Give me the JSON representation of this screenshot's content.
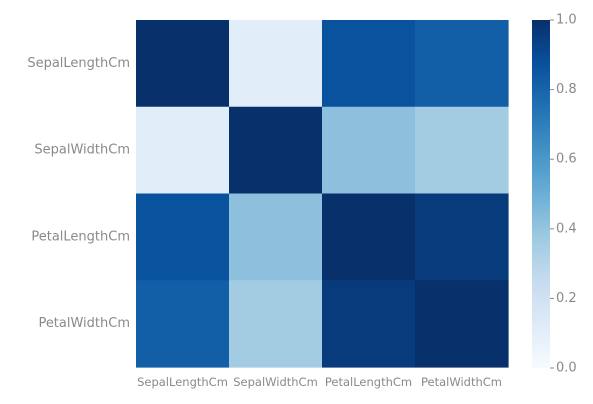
{
  "chart_data": {
    "type": "heatmap",
    "title": "",
    "xlabel": "",
    "ylabel": "",
    "x_categories": [
      "SepalLengthCm",
      "SepalWidthCm",
      "PetalLengthCm",
      "PetalWidthCm"
    ],
    "y_categories": [
      "SepalLengthCm",
      "SepalWidthCm",
      "PetalLengthCm",
      "PetalWidthCm"
    ],
    "values": [
      [
        1.0,
        0.11,
        0.87,
        0.82
      ],
      [
        0.11,
        1.0,
        0.42,
        0.36
      ],
      [
        0.87,
        0.42,
        1.0,
        0.96
      ],
      [
        0.82,
        0.36,
        0.96,
        1.0
      ]
    ],
    "colormap": "Blues",
    "vmin": 0.0,
    "vmax": 1.0,
    "colorbar": {
      "ticks": [
        "0.0",
        "0.2",
        "0.4",
        "0.6",
        "0.8",
        "1.0"
      ],
      "tick_values": [
        0.0,
        0.2,
        0.4,
        0.6,
        0.8,
        1.0
      ]
    },
    "grid": false
  }
}
